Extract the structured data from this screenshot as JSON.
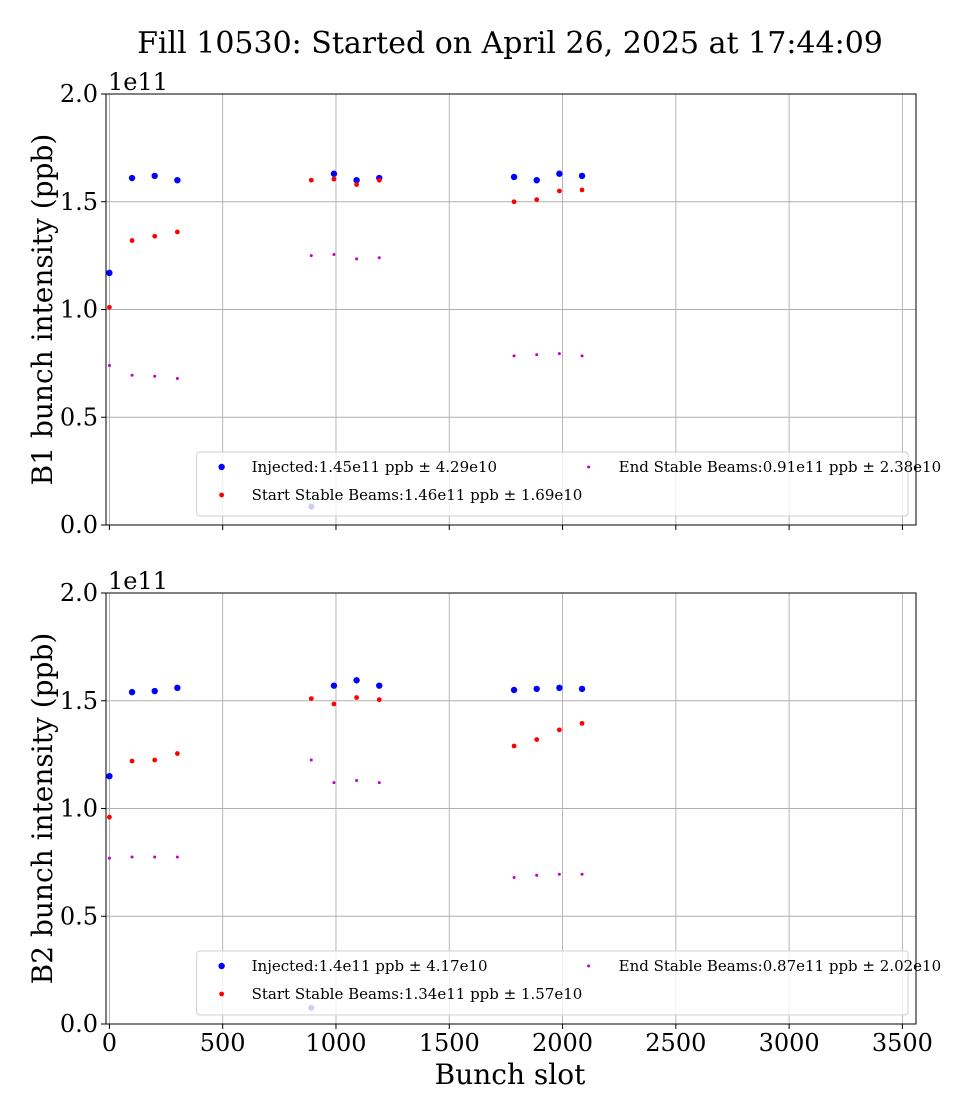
{
  "chart_data": {
    "type": "scatter",
    "title": "Fill 10530: Started on April 26, 2025 at 17:44:09",
    "xlabel": "Bunch slot",
    "xlim": [
      -15,
      3560
    ],
    "xticks": [
      0,
      500,
      1000,
      1500,
      2000,
      2500,
      3000,
      3500
    ],
    "ylim": [
      0,
      2.0
    ],
    "yticks": [
      0.0,
      0.5,
      1.0,
      1.5,
      2.0
    ],
    "y_offset_label": "1e11",
    "grid": true,
    "legend_position": "lower-right",
    "series_colors": {
      "injected": "#0000ff",
      "start": "#ff0000",
      "end": "#bf00bf"
    },
    "panels": [
      {
        "ylabel": "B1 bunch intensity (ppb)",
        "series": [
          {
            "key": "injected",
            "name": "Injected:1.45e11 ppb ± 4.29e10",
            "points": [
              [
                0,
                1.17
              ],
              [
                100,
                1.61
              ],
              [
                200,
                1.62
              ],
              [
                300,
                1.6
              ],
              [
                991,
                1.63
              ],
              [
                1091,
                1.6
              ],
              [
                1191,
                1.61
              ],
              [
                1786,
                1.615
              ],
              [
                1886,
                1.6
              ],
              [
                1986,
                1.63
              ],
              [
                2086,
                1.62
              ]
            ]
          },
          {
            "key": "start",
            "name": "Start Stable Beams:1.46e11 ppb ± 1.69e10",
            "points": [
              [
                0,
                1.01
              ],
              [
                100,
                1.32
              ],
              [
                200,
                1.34
              ],
              [
                300,
                1.36
              ],
              [
                891,
                1.6
              ],
              [
                991,
                1.605
              ],
              [
                1091,
                1.58
              ],
              [
                1191,
                1.6
              ],
              [
                1786,
                1.5
              ],
              [
                1886,
                1.51
              ],
              [
                1986,
                1.55
              ],
              [
                2086,
                1.555
              ]
            ]
          },
          {
            "key": "end",
            "name": "End Stable Beams:0.91e11 ppb ± 2.38e10",
            "points": [
              [
                0,
                0.74
              ],
              [
                100,
                0.695
              ],
              [
                200,
                0.69
              ],
              [
                300,
                0.68
              ],
              [
                891,
                1.25
              ],
              [
                991,
                1.255
              ],
              [
                1091,
                1.235
              ],
              [
                1191,
                1.24
              ],
              [
                1786,
                0.785
              ],
              [
                1886,
                0.79
              ],
              [
                1986,
                0.795
              ],
              [
                2086,
                0.785
              ]
            ]
          },
          {
            "key": "faint",
            "name": "",
            "points": [
              [
                891,
                0.085
              ]
            ]
          }
        ]
      },
      {
        "ylabel": "B2 bunch intensity (ppb)",
        "series": [
          {
            "key": "injected",
            "name": "Injected:1.4e11 ppb ± 4.17e10",
            "points": [
              [
                0,
                1.15
              ],
              [
                100,
                1.54
              ],
              [
                200,
                1.545
              ],
              [
                300,
                1.56
              ],
              [
                991,
                1.57
              ],
              [
                1091,
                1.595
              ],
              [
                1191,
                1.57
              ],
              [
                1786,
                1.55
              ],
              [
                1886,
                1.555
              ],
              [
                1986,
                1.56
              ],
              [
                2086,
                1.555
              ]
            ]
          },
          {
            "key": "start",
            "name": "Start Stable Beams:1.34e11 ppb ± 1.57e10",
            "points": [
              [
                0,
                0.96
              ],
              [
                100,
                1.22
              ],
              [
                200,
                1.225
              ],
              [
                300,
                1.255
              ],
              [
                891,
                1.51
              ],
              [
                991,
                1.485
              ],
              [
                1091,
                1.515
              ],
              [
                1191,
                1.505
              ],
              [
                1786,
                1.29
              ],
              [
                1886,
                1.32
              ],
              [
                1986,
                1.365
              ],
              [
                2086,
                1.395
              ]
            ]
          },
          {
            "key": "end",
            "name": "End Stable Beams:0.87e11 ppb ± 2.02e10",
            "points": [
              [
                0,
                0.77
              ],
              [
                100,
                0.775
              ],
              [
                200,
                0.775
              ],
              [
                300,
                0.775
              ],
              [
                891,
                1.225
              ],
              [
                991,
                1.12
              ],
              [
                1091,
                1.13
              ],
              [
                1191,
                1.12
              ],
              [
                1786,
                0.68
              ],
              [
                1886,
                0.69
              ],
              [
                1986,
                0.695
              ],
              [
                2086,
                0.695
              ]
            ]
          },
          {
            "key": "faint",
            "name": "",
            "points": [
              [
                891,
                0.075
              ]
            ]
          }
        ]
      }
    ]
  }
}
